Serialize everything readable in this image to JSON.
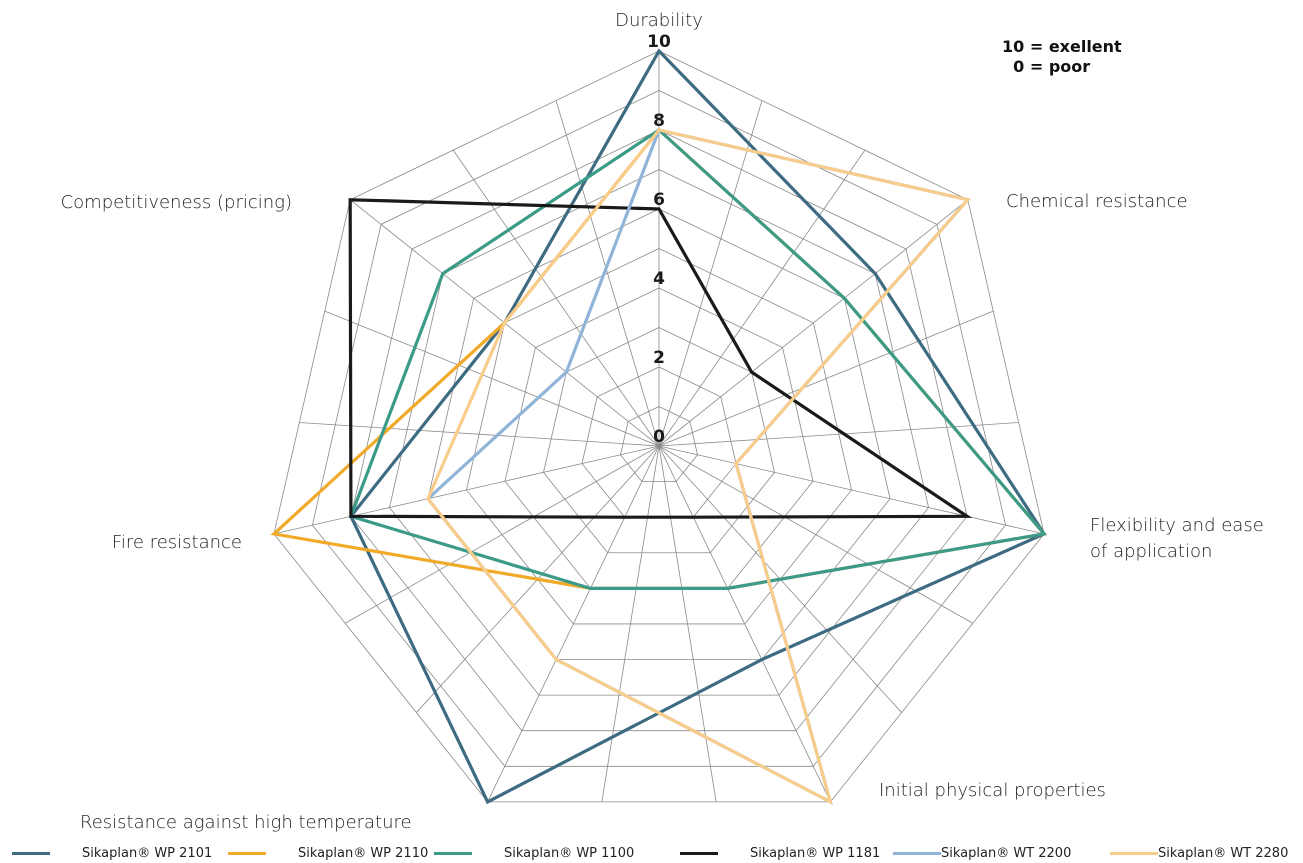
{
  "chart_data": {
    "type": "radar",
    "axes": [
      "Durability",
      "Chemical resistance",
      "Flexibility and ease\nof application",
      "Initial physical properties",
      "Resistance against high temperature",
      "Fire resistance",
      "Competitiveness (pricing)"
    ],
    "r_ticks": [
      "0",
      "2",
      "4",
      "6",
      "8",
      "10"
    ],
    "rlim": [
      0,
      10
    ],
    "grid_levels": 10,
    "scale_note": "10 = exellent\n  0 = poor",
    "legend_position": "bottom",
    "series": [
      {
        "name": "Sikaplan® WP 2101",
        "color": "#3d6b82",
        "values": [
          10,
          7,
          10,
          6,
          10,
          8,
          5
        ]
      },
      {
        "name": "Sikaplan® WP 2110",
        "color": "#f0a928",
        "values": [
          8,
          6,
          10,
          4,
          4,
          10,
          5
        ]
      },
      {
        "name": "Sikaplan® WP 1100",
        "color": "#3b9a88",
        "values": [
          8,
          6,
          10,
          4,
          4,
          8,
          7
        ]
      },
      {
        "name": "Sikaplan® WP 1181",
        "color": "#1a1a1a",
        "values": [
          6,
          3,
          8,
          2,
          2,
          8,
          10
        ]
      },
      {
        "name": "Sikaplan® WT 2200",
        "color": "#8fb4d8",
        "values": [
          8,
          10,
          2,
          10,
          6,
          6,
          3
        ]
      },
      {
        "name": "Sikaplan® WT 2280",
        "color": "#f8cc8a",
        "values": [
          8,
          10,
          2,
          10,
          6,
          6,
          5
        ]
      }
    ]
  }
}
